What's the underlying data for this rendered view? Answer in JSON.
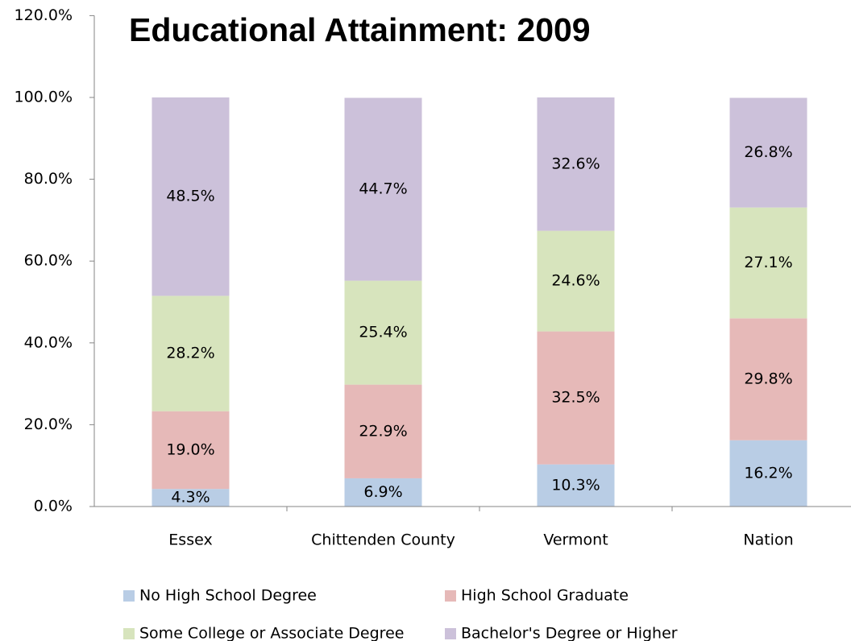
{
  "chart_data": {
    "type": "stacked_bar",
    "title": "Educational Attainment: 2009",
    "categories": [
      "Essex",
      "Chittenden County",
      "Vermont",
      "Nation"
    ],
    "series": [
      {
        "name": "No High School Degree",
        "color": "#b9cde5",
        "values": [
          4.3,
          6.9,
          10.3,
          16.2
        ],
        "value_labels": [
          "4.3%",
          "6.9%",
          "10.3%",
          "16.2%"
        ]
      },
      {
        "name": "High School Graduate",
        "color": "#e6b9b8",
        "values": [
          19.0,
          22.9,
          32.5,
          29.8
        ],
        "value_labels": [
          "19.0%",
          "22.9%",
          "32.5%",
          "29.8%"
        ]
      },
      {
        "name": "Some College or Associate Degree",
        "color": "#d7e4bd",
        "values": [
          28.2,
          25.4,
          24.6,
          27.1
        ],
        "value_labels": [
          "28.2%",
          "25.4%",
          "24.6%",
          "27.1%"
        ]
      },
      {
        "name": "Bachelor's Degree or Higher",
        "color": "#ccc1da",
        "values": [
          48.5,
          44.7,
          32.6,
          26.8
        ],
        "value_labels": [
          "48.5%",
          "44.7%",
          "32.6%",
          "26.8%"
        ]
      }
    ],
    "ylim": [
      0,
      120
    ],
    "yticks": [
      {
        "value": 0,
        "label": "0.0%"
      },
      {
        "value": 20,
        "label": "20.0%"
      },
      {
        "value": 40,
        "label": "40.0%"
      },
      {
        "value": 60,
        "label": "60.0%"
      },
      {
        "value": 80,
        "label": "80.0%"
      },
      {
        "value": 100,
        "label": "100.0%"
      },
      {
        "value": 120,
        "label": "120.0%"
      }
    ],
    "legend": "bottom"
  }
}
